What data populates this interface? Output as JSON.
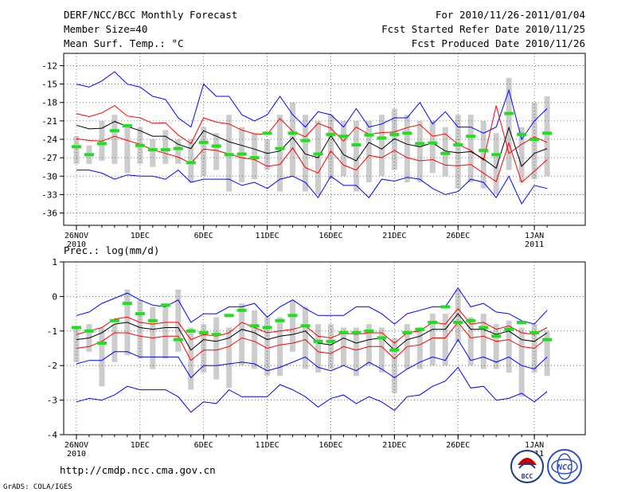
{
  "header": {
    "title": "DERF/NCC/BCC Monthly Forecast",
    "member": "Member Size=40",
    "variable": "Mean Surf. Temp.: °C",
    "period": "For 2010/11/26-2011/01/04",
    "start": "Fcst Started Refer Date 2010/11/25",
    "produced": "Fcst Produced Date 2010/11/26"
  },
  "footer": {
    "url": "http://cmdp.ncc.cma.gov.cn",
    "grads": "GrADS: COLA/IGES",
    "logo1_text": "BCC",
    "logo2_text": "NCC"
  },
  "colors": {
    "blue": "#0000ff",
    "red": "#ff0000",
    "black": "#000000",
    "green": "#22dd22",
    "gray": "#cccccc"
  },
  "chart_data": [
    {
      "type": "line",
      "title": "Mean Surf. Temp.: °C",
      "x_tick_labels": [
        {
          "day": 0,
          "line1": "26NOV",
          "line2": "2010"
        },
        {
          "day": 5,
          "line1": "1DEC",
          "line2": ""
        },
        {
          "day": 10,
          "line1": "6DEC",
          "line2": ""
        },
        {
          "day": 15,
          "line1": "11DEC",
          "line2": ""
        },
        {
          "day": 20,
          "line1": "16DEC",
          "line2": ""
        },
        {
          "day": 25,
          "line1": "21DEC",
          "line2": ""
        },
        {
          "day": 30,
          "line1": "26DEC",
          "line2": ""
        },
        {
          "day": 36,
          "line1": "1JAN",
          "line2": "2011"
        }
      ],
      "y_ticks": [
        "-12",
        "-15",
        "-18",
        "-21",
        "-24",
        "-27",
        "-30",
        "-33",
        "-36"
      ],
      "ylim": [
        -38,
        -10
      ],
      "xlim": [
        -1,
        40
      ],
      "series": [
        {
          "name": "max",
          "color": "blue",
          "values": [
            -15,
            -15.5,
            -14.5,
            -13,
            -15,
            -15.5,
            -17,
            -17.5,
            -20.5,
            -22,
            -15,
            -17,
            -17,
            -20,
            -21,
            -20,
            -17,
            -20,
            -22,
            -19.5,
            -20,
            -22,
            -19,
            -22,
            -21.5,
            -20.5,
            -20.5,
            -18,
            -21.5,
            -19.5,
            -22,
            -22,
            -23,
            -22,
            -16,
            -24,
            -21,
            -19
          ]
        },
        {
          "name": "upper",
          "color": "red",
          "values": [
            -19.8,
            -20.3,
            -19.7,
            -18.5,
            -20.2,
            -20.5,
            -21.4,
            -21.3,
            -23.3,
            -24.7,
            -20.5,
            -21.2,
            -21.5,
            -22.5,
            -23.1,
            -23.2,
            -20.6,
            -22.7,
            -23.6,
            -21.4,
            -22.2,
            -24.3,
            -22.0,
            -23.2,
            -22.9,
            -22.8,
            -22.1,
            -21.6,
            -23.5,
            -23.1,
            -24.8,
            -25.8,
            -27.4,
            -18.5,
            -26.3,
            -24.8,
            -23.6,
            -24.5
          ]
        },
        {
          "name": "mean",
          "color": "black",
          "values": [
            -21.7,
            -22.3,
            -22.2,
            -21.1,
            -21.9,
            -22.6,
            -23.5,
            -23.5,
            -24.8,
            -25.5,
            -22.6,
            -23.5,
            -24.4,
            -25.0,
            -25.6,
            -26.3,
            -25.9,
            -23.7,
            -26.4,
            -27.0,
            -23.4,
            -26.5,
            -27.5,
            -24.5,
            -25.6,
            -23.9,
            -24.8,
            -25.2,
            -24.6,
            -25.9,
            -26.2,
            -26.0,
            -27.2,
            -28.7,
            -22.1,
            -28.4,
            -26.3,
            -25.5
          ]
        },
        {
          "name": "lower",
          "color": "red",
          "values": [
            -23.9,
            -24.2,
            -24.3,
            -23.5,
            -24.2,
            -24.8,
            -25.7,
            -26.3,
            -26.9,
            -27.9,
            -25.6,
            -25.8,
            -26.4,
            -27.0,
            -27.3,
            -28.4,
            -28.1,
            -25.4,
            -28.6,
            -29.5,
            -25.9,
            -28.2,
            -29.0,
            -26.6,
            -27.0,
            -25.8,
            -27.0,
            -27.5,
            -27.3,
            -28.2,
            -28.3,
            -28.1,
            -29.5,
            -30.9,
            -24.6,
            -31.0,
            -29.2,
            -27.3
          ]
        },
        {
          "name": "min",
          "color": "blue",
          "values": [
            -29,
            -29,
            -29.5,
            -30.5,
            -29.8,
            -30,
            -30,
            -30.5,
            -29,
            -31,
            -30.5,
            -30.5,
            -30.5,
            -31.5,
            -31,
            -32,
            -30.5,
            -30,
            -31,
            -33.5,
            -30,
            -31.5,
            -31.5,
            -33.5,
            -30.5,
            -30.8,
            -30.2,
            -30.5,
            -32,
            -33,
            -32.5,
            -30.5,
            -31,
            -33.5,
            -30,
            -34.5,
            -31.5,
            -32
          ]
        }
      ],
      "boxes": [
        {
          "lo": -28,
          "hi": -23.5
        },
        {
          "lo": -28,
          "hi": -25
        },
        {
          "lo": -27.5,
          "hi": -21
        },
        {
          "lo": -28,
          "hi": -20
        },
        {
          "lo": -29.5,
          "hi": -22
        },
        {
          "lo": -28,
          "hi": -22
        },
        {
          "lo": -28.5,
          "hi": -24
        },
        {
          "lo": -28,
          "hi": -22.5
        },
        {
          "lo": -28,
          "hi": -24
        },
        {
          "lo": -31,
          "hi": -24
        },
        {
          "lo": -30,
          "hi": -22
        },
        {
          "lo": -29,
          "hi": -23
        },
        {
          "lo": -32.5,
          "hi": -20
        },
        {
          "lo": -31,
          "hi": -22
        },
        {
          "lo": -30.5,
          "hi": -23
        },
        {
          "lo": -29,
          "hi": -24
        },
        {
          "lo": -32.5,
          "hi": -20
        },
        {
          "lo": -30,
          "hi": -18
        },
        {
          "lo": -32.5,
          "hi": -20
        },
        {
          "lo": -33,
          "hi": -21
        },
        {
          "lo": -30.5,
          "hi": -20
        },
        {
          "lo": -30,
          "hi": -21
        },
        {
          "lo": -32.5,
          "hi": -21
        },
        {
          "lo": -31,
          "hi": -21
        },
        {
          "lo": -30,
          "hi": -20
        },
        {
          "lo": -29,
          "hi": -19
        },
        {
          "lo": -31,
          "hi": -20
        },
        {
          "lo": -31,
          "hi": -21
        },
        {
          "lo": -29.5,
          "hi": -21
        },
        {
          "lo": -30,
          "hi": -22
        },
        {
          "lo": -32,
          "hi": -20
        },
        {
          "lo": -31,
          "hi": -20
        },
        {
          "lo": -32,
          "hi": -21
        },
        {
          "lo": -33,
          "hi": -23
        },
        {
          "lo": -29,
          "hi": -14
        },
        {
          "lo": -31,
          "hi": -22
        },
        {
          "lo": -30.5,
          "hi": -18
        },
        {
          "lo": -30,
          "hi": -17
        }
      ],
      "obs": [
        -25.2,
        -26.5,
        -24.7,
        -22.6,
        -21.8,
        -25.0,
        -25.7,
        -25.7,
        -25.5,
        -27.8,
        -24.5,
        -25.1,
        -26.5,
        -26.4,
        -27.0,
        -23.0,
        -25.5,
        -23.0,
        -24.2,
        -26.4,
        -23.2,
        -23.5,
        -24.9,
        -23.3,
        -23.8,
        -23.2,
        -23.0,
        -24.7,
        -24.6,
        -26.3,
        -24.9,
        -23.5,
        -25.8,
        -26.5,
        -19.8,
        -23.2,
        -24.0,
        -23.0
      ]
    },
    {
      "type": "line",
      "title": "Prec.: log(mm/d)",
      "x_tick_labels": [
        {
          "day": 0,
          "line1": "26NOV",
          "line2": "2010"
        },
        {
          "day": 5,
          "line1": "1DEC",
          "line2": ""
        },
        {
          "day": 10,
          "line1": "6DEC",
          "line2": ""
        },
        {
          "day": 15,
          "line1": "11DEC",
          "line2": ""
        },
        {
          "day": 20,
          "line1": "16DEC",
          "line2": ""
        },
        {
          "day": 25,
          "line1": "21DEC",
          "line2": ""
        },
        {
          "day": 30,
          "line1": "26DEC",
          "line2": ""
        },
        {
          "day": 36,
          "line1": "1JAN",
          "line2": "2011"
        }
      ],
      "y_ticks": [
        "1",
        "0",
        "-1",
        "-2",
        "-3",
        "-4"
      ],
      "ylim": [
        -4,
        1
      ],
      "xlim": [
        -1,
        40
      ],
      "series": [
        {
          "name": "max",
          "color": "blue",
          "values": [
            -0.55,
            -0.45,
            -0.2,
            -0.05,
            0.1,
            -0.1,
            -0.25,
            -0.3,
            -0.1,
            -0.75,
            -0.5,
            -0.5,
            -0.3,
            -0.3,
            -0.2,
            -0.6,
            -0.3,
            -0.1,
            -0.35,
            -0.55,
            -0.55,
            -0.55,
            -0.3,
            -0.3,
            -0.5,
            -0.8,
            -0.5,
            -0.4,
            -0.3,
            -0.3,
            0.25,
            -0.3,
            -0.2,
            -0.45,
            -0.5,
            -0.7,
            -0.8,
            -0.4
          ]
        },
        {
          "name": "upper",
          "color": "red",
          "values": [
            -1.1,
            -1.0,
            -0.9,
            -0.65,
            -0.6,
            -0.75,
            -0.8,
            -0.75,
            -0.75,
            -1.25,
            -1.1,
            -1.15,
            -1.05,
            -0.75,
            -0.9,
            -1.05,
            -1.0,
            -0.95,
            -0.85,
            -1.15,
            -1.2,
            -1.05,
            -1.1,
            -1.05,
            -1.05,
            -1.35,
            -1.05,
            -1.0,
            -0.75,
            -0.8,
            -0.35,
            -0.8,
            -0.75,
            -0.95,
            -0.85,
            -1.05,
            -1.1,
            -0.9
          ]
        },
        {
          "name": "mean",
          "color": "black",
          "values": [
            -1.25,
            -1.2,
            -1.05,
            -0.8,
            -0.75,
            -0.9,
            -0.95,
            -0.9,
            -0.9,
            -1.55,
            -1.25,
            -1.3,
            -1.2,
            -0.95,
            -1.05,
            -1.25,
            -1.15,
            -1.1,
            -1.0,
            -1.35,
            -1.4,
            -1.2,
            -1.35,
            -1.25,
            -1.2,
            -1.55,
            -1.25,
            -1.15,
            -0.95,
            -0.95,
            -0.5,
            -0.95,
            -0.95,
            -1.1,
            -1.0,
            -1.25,
            -1.3,
            -1.05
          ]
        },
        {
          "name": "lower",
          "color": "red",
          "values": [
            -1.5,
            -1.45,
            -1.3,
            -1.05,
            -1.05,
            -1.15,
            -1.2,
            -1.15,
            -1.15,
            -1.85,
            -1.55,
            -1.55,
            -1.45,
            -1.2,
            -1.3,
            -1.5,
            -1.4,
            -1.35,
            -1.25,
            -1.6,
            -1.65,
            -1.45,
            -1.55,
            -1.45,
            -1.45,
            -1.8,
            -1.45,
            -1.4,
            -1.2,
            -1.2,
            -0.75,
            -1.2,
            -1.15,
            -1.3,
            -1.25,
            -1.45,
            -1.5,
            -1.2
          ]
        },
        {
          "name": "min",
          "color": "blue",
          "values": [
            -1.95,
            -1.85,
            -1.85,
            -1.6,
            -1.6,
            -1.75,
            -1.75,
            -1.75,
            -1.75,
            -2.35,
            -2.0,
            -2.0,
            -1.95,
            -1.9,
            -1.95,
            -2.15,
            -2.05,
            -1.9,
            -1.75,
            -2.05,
            -2.15,
            -2.0,
            -2.15,
            -1.9,
            -2.1,
            -2.35,
            -2.1,
            -1.9,
            -1.75,
            -1.85,
            -1.25,
            -1.85,
            -1.75,
            -1.9,
            -1.75,
            -2.0,
            -2.1,
            -1.75
          ]
        },
        {
          "name": "min2",
          "color": "blue",
          "values": [
            -3.05,
            -2.95,
            -3.0,
            -2.85,
            -2.6,
            -2.7,
            -2.7,
            -2.7,
            -2.9,
            -3.35,
            -3.05,
            -3.1,
            -2.7,
            -2.9,
            -2.9,
            -2.9,
            -2.55,
            -2.7,
            -2.9,
            -3.2,
            -2.95,
            -2.85,
            -3.1,
            -2.9,
            -3.05,
            -3.3,
            -2.9,
            -2.85,
            -2.6,
            -2.45,
            -2.05,
            -2.65,
            -2.6,
            -3.0,
            -2.95,
            -2.8,
            -3.05,
            -2.75
          ]
        }
      ],
      "boxes": [
        {
          "lo": -1.9,
          "hi": -0.9
        },
        {
          "lo": -1.6,
          "hi": -0.8
        },
        {
          "lo": -2.6,
          "hi": -0.9
        },
        {
          "lo": -1.9,
          "hi": -0.8
        },
        {
          "lo": -1.7,
          "hi": 0.2
        },
        {
          "lo": -1.8,
          "hi": -0.1
        },
        {
          "lo": -2.1,
          "hi": -0.3
        },
        {
          "lo": -1.8,
          "hi": -0.3
        },
        {
          "lo": -1.6,
          "hi": 0.2
        },
        {
          "lo": -2.7,
          "hi": -0.9
        },
        {
          "lo": -2.2,
          "hi": -0.8
        },
        {
          "lo": -2.4,
          "hi": -0.6
        },
        {
          "lo": -2.65,
          "hi": -0.9
        },
        {
          "lo": -2.0,
          "hi": -0.2
        },
        {
          "lo": -2.1,
          "hi": -0.4
        },
        {
          "lo": -2.3,
          "hi": -0.6
        },
        {
          "lo": -2.3,
          "hi": -0.6
        },
        {
          "lo": -1.6,
          "hi": -0.1
        },
        {
          "lo": -2.1,
          "hi": -0.3
        },
        {
          "lo": -2.2,
          "hi": -0.8
        },
        {
          "lo": -2.1,
          "hi": -0.8
        },
        {
          "lo": -2.0,
          "hi": -0.9
        },
        {
          "lo": -2.3,
          "hi": -0.9
        },
        {
          "lo": -2.0,
          "hi": -0.8
        },
        {
          "lo": -2.2,
          "hi": -0.9
        },
        {
          "lo": -2.8,
          "hi": -1.2
        },
        {
          "lo": -2.1,
          "hi": -0.8
        },
        {
          "lo": -2.1,
          "hi": -0.9
        },
        {
          "lo": -2.0,
          "hi": -0.5
        },
        {
          "lo": -2.0,
          "hi": -0.5
        },
        {
          "lo": -1.3,
          "hi": 0.2
        },
        {
          "lo": -2.0,
          "hi": -0.6
        },
        {
          "lo": -2.1,
          "hi": -0.5
        },
        {
          "lo": -2.1,
          "hi": -0.8
        },
        {
          "lo": -2.2,
          "hi": -0.7
        },
        {
          "lo": -2.9,
          "hi": -0.9
        },
        {
          "lo": -2.2,
          "hi": -0.8
        },
        {
          "lo": -2.3,
          "hi": -1.0
        }
      ],
      "obs": [
        -0.9,
        -1.0,
        -1.35,
        -0.7,
        -0.2,
        -0.5,
        -0.7,
        -0.25,
        -1.25,
        -1.0,
        -1.05,
        -1.1,
        -0.55,
        -0.4,
        -0.85,
        -0.9,
        -0.7,
        -0.55,
        -0.85,
        -1.3,
        -1.3,
        -1.05,
        -1.05,
        -1.0,
        -1.2,
        -1.55,
        -1.05,
        -0.95,
        -0.75,
        -0.3,
        -0.75,
        -0.7,
        -0.9,
        -1.15,
        -0.95,
        -0.75,
        -1.05,
        -1.25
      ]
    }
  ]
}
